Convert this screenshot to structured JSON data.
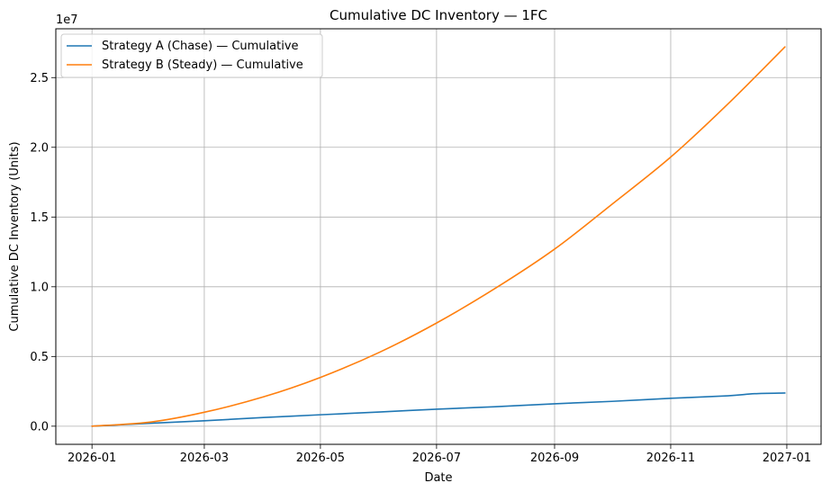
{
  "chart_data": {
    "type": "line",
    "title": "Cumulative DC Inventory — 1FC",
    "xlabel": "Date",
    "ylabel": "Cumulative DC Inventory (Units)",
    "y_multiplier_label": "1e7",
    "xlim": [
      "2025-12-13",
      "2027-01-19"
    ],
    "ylim": [
      -1300000,
      28500000
    ],
    "x_ticks": [
      "2026-01-01",
      "2026-03-01",
      "2026-05-01",
      "2026-07-01",
      "2026-09-01",
      "2026-11-01",
      "2027-01-01"
    ],
    "x_tick_labels": [
      "2026-01",
      "2026-03",
      "2026-05",
      "2026-07",
      "2026-09",
      "2026-11",
      "2027-01"
    ],
    "y_ticks": [
      0,
      5000000,
      10000000,
      15000000,
      20000000,
      25000000
    ],
    "y_tick_labels": [
      "0.0",
      "0.5",
      "1.0",
      "1.5",
      "2.0",
      "2.5"
    ],
    "grid": true,
    "legend_position": "top-left",
    "series": [
      {
        "name": "Strategy A (Chase) — Cumulative",
        "color": "#1f77b4",
        "x": [
          "2026-01-01",
          "2026-02-01",
          "2026-03-01",
          "2026-04-01",
          "2026-05-01",
          "2026-06-01",
          "2026-07-01",
          "2026-08-01",
          "2026-09-01",
          "2026-10-01",
          "2026-11-01",
          "2026-12-01",
          "2026-12-15",
          "2026-12-31"
        ],
        "values": [
          0,
          210000,
          390000,
          620000,
          820000,
          1020000,
          1220000,
          1400000,
          1610000,
          1780000,
          2000000,
          2180000,
          2330000,
          2380000
        ]
      },
      {
        "name": "Strategy B (Steady) — Cumulative",
        "color": "#ff7f0e",
        "x": [
          "2026-01-01",
          "2026-02-01",
          "2026-03-01",
          "2026-04-01",
          "2026-05-01",
          "2026-06-01",
          "2026-07-01",
          "2026-08-01",
          "2026-09-01",
          "2026-10-01",
          "2026-11-01",
          "2026-12-01",
          "2026-12-31"
        ],
        "values": [
          0,
          300000,
          1000000,
          2100000,
          3500000,
          5300000,
          7400000,
          9900000,
          12700000,
          15900000,
          19300000,
          23100000,
          27200000
        ]
      }
    ]
  }
}
